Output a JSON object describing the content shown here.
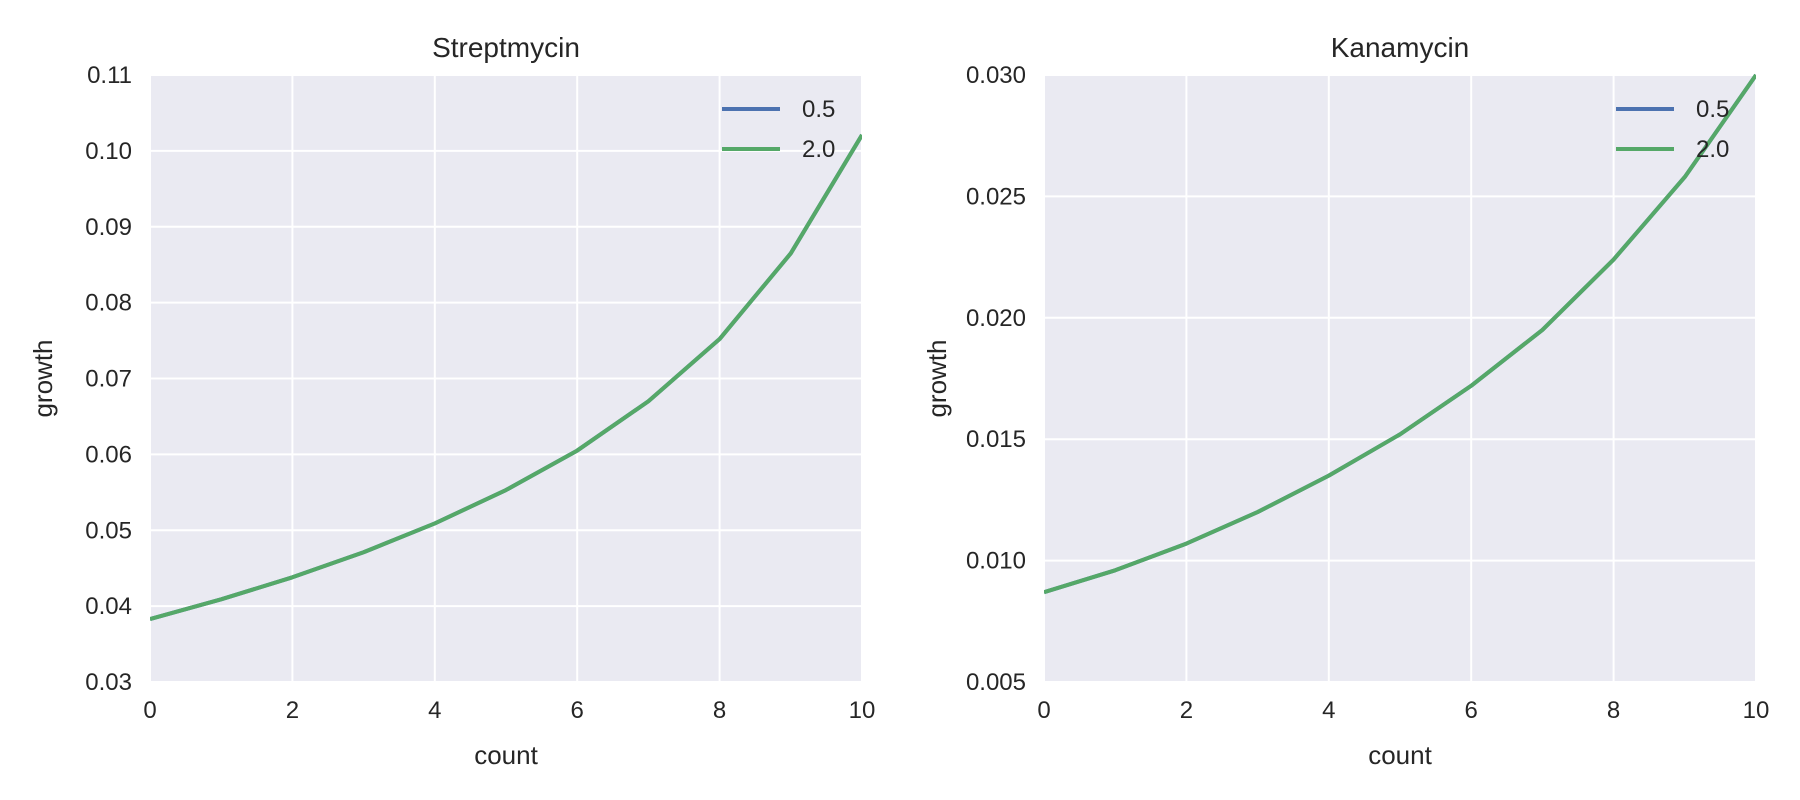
{
  "colors": {
    "background": "#ffffff",
    "plot_bg": "#eaeaf2",
    "grid": "#ffffff",
    "text": "#262626"
  },
  "chart_data": [
    {
      "type": "line",
      "title": "Streptmycin",
      "xlabel": "count",
      "ylabel": "growth",
      "xlim": [
        0,
        10
      ],
      "ylim": [
        0.03,
        0.11
      ],
      "xticks": [
        0,
        2,
        4,
        6,
        8,
        10
      ],
      "xtick_labels": [
        "0",
        "2",
        "4",
        "6",
        "8",
        "10"
      ],
      "yticks": [
        0.03,
        0.04,
        0.05,
        0.06,
        0.07,
        0.08,
        0.09,
        0.1,
        0.11
      ],
      "ytick_labels": [
        "0.03",
        "0.04",
        "0.05",
        "0.06",
        "0.07",
        "0.08",
        "0.09",
        "0.10",
        "0.11"
      ],
      "grid": true,
      "legend_position": "top-right",
      "x": [
        0,
        1,
        2,
        3,
        4,
        5,
        6,
        7,
        8,
        9,
        10
      ],
      "series": [
        {
          "name": "0.5",
          "color": "#4c72b0",
          "values": [
            0.0383,
            0.0409,
            0.0438,
            0.0471,
            0.0509,
            0.0553,
            0.0605,
            0.067,
            0.0752,
            0.0865,
            0.1021
          ]
        },
        {
          "name": "2.0",
          "color": "#55a868",
          "values": [
            0.0383,
            0.0409,
            0.0438,
            0.0471,
            0.0509,
            0.0553,
            0.0605,
            0.067,
            0.0752,
            0.0865,
            0.1021
          ]
        }
      ]
    },
    {
      "type": "line",
      "title": "Kanamycin",
      "xlabel": "count",
      "ylabel": "growth",
      "xlim": [
        0,
        10
      ],
      "ylim": [
        0.005,
        0.03
      ],
      "xticks": [
        0,
        2,
        4,
        6,
        8,
        10
      ],
      "xtick_labels": [
        "0",
        "2",
        "4",
        "6",
        "8",
        "10"
      ],
      "yticks": [
        0.005,
        0.01,
        0.015,
        0.02,
        0.025,
        0.03
      ],
      "ytick_labels": [
        "0.005",
        "0.010",
        "0.015",
        "0.020",
        "0.025",
        "0.030"
      ],
      "grid": true,
      "legend_position": "top-right",
      "x": [
        0,
        1,
        2,
        3,
        4,
        5,
        6,
        7,
        8,
        9,
        10
      ],
      "series": [
        {
          "name": "0.5",
          "color": "#4c72b0",
          "values": [
            0.0087,
            0.0096,
            0.0107,
            0.012,
            0.0135,
            0.0152,
            0.0172,
            0.0195,
            0.0224,
            0.0258,
            0.03
          ]
        },
        {
          "name": "2.0",
          "color": "#55a868",
          "values": [
            0.0087,
            0.0096,
            0.0107,
            0.012,
            0.0135,
            0.0152,
            0.0172,
            0.0195,
            0.0224,
            0.0258,
            0.03
          ]
        }
      ]
    }
  ]
}
